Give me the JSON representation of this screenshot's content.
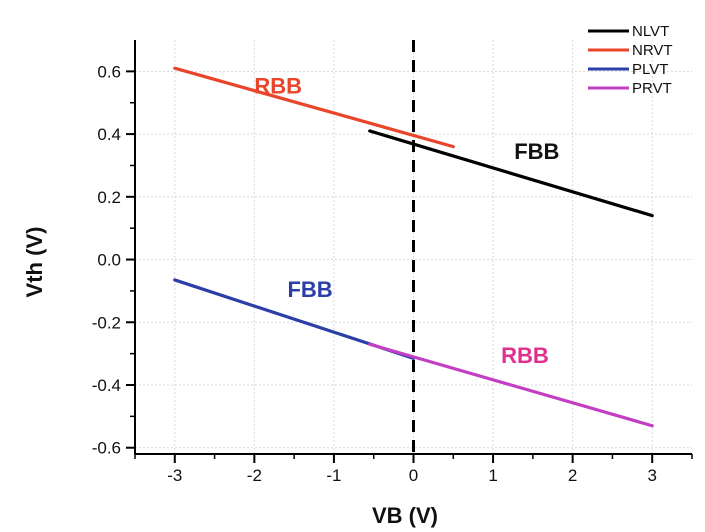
{
  "chart_data": {
    "type": "line",
    "xlabel": "VB (V)",
    "ylabel": "Vth (V)",
    "xlim": [
      -3.5,
      3.5
    ],
    "ylim": [
      -0.62,
      0.7
    ],
    "xticks": [
      -3,
      -2,
      -1,
      0,
      1,
      2,
      3
    ],
    "xtick_labels": [
      "-3",
      "-2",
      "-1",
      "0",
      "1",
      "2",
      "3"
    ],
    "yticks": [
      0.6,
      0.4,
      0.2,
      0.0,
      -0.2,
      -0.4,
      -0.6
    ],
    "ytick_labels": [
      "0.6",
      "0.4",
      "0.2",
      "0.0",
      "-0.2",
      "-0.4",
      "-0.6"
    ],
    "grid": true,
    "legend_position": "top-right",
    "reference_line": {
      "x": 0,
      "style": "dashed",
      "color": "#000000"
    },
    "series": [
      {
        "name": "NLVT",
        "color": "#000000",
        "x": [
          -0.55,
          3.0
        ],
        "y": [
          0.41,
          0.14
        ]
      },
      {
        "name": "NRVT",
        "color": "#e8452a",
        "x": [
          -3.0,
          0.5
        ],
        "y": [
          0.61,
          0.36
        ]
      },
      {
        "name": "PLVT",
        "color": "#2b3fa6",
        "x": [
          -3.0,
          0.0
        ],
        "y": [
          -0.065,
          -0.315
        ]
      },
      {
        "name": "PRVT",
        "color": "#c43ec4",
        "x": [
          -0.55,
          3.0
        ],
        "y": [
          -0.27,
          -0.53
        ]
      }
    ],
    "annotations": [
      {
        "text": "RBB",
        "x": -1.7,
        "y": 0.53,
        "color": "#e8452a"
      },
      {
        "text": "FBB",
        "x": 1.55,
        "y": 0.32,
        "color": "#111111"
      },
      {
        "text": "FBB",
        "x": -1.3,
        "y": -0.12,
        "color": "#2b3fa6"
      },
      {
        "text": "RBB",
        "x": 1.4,
        "y": -0.33,
        "color": "#e0308e"
      }
    ]
  }
}
